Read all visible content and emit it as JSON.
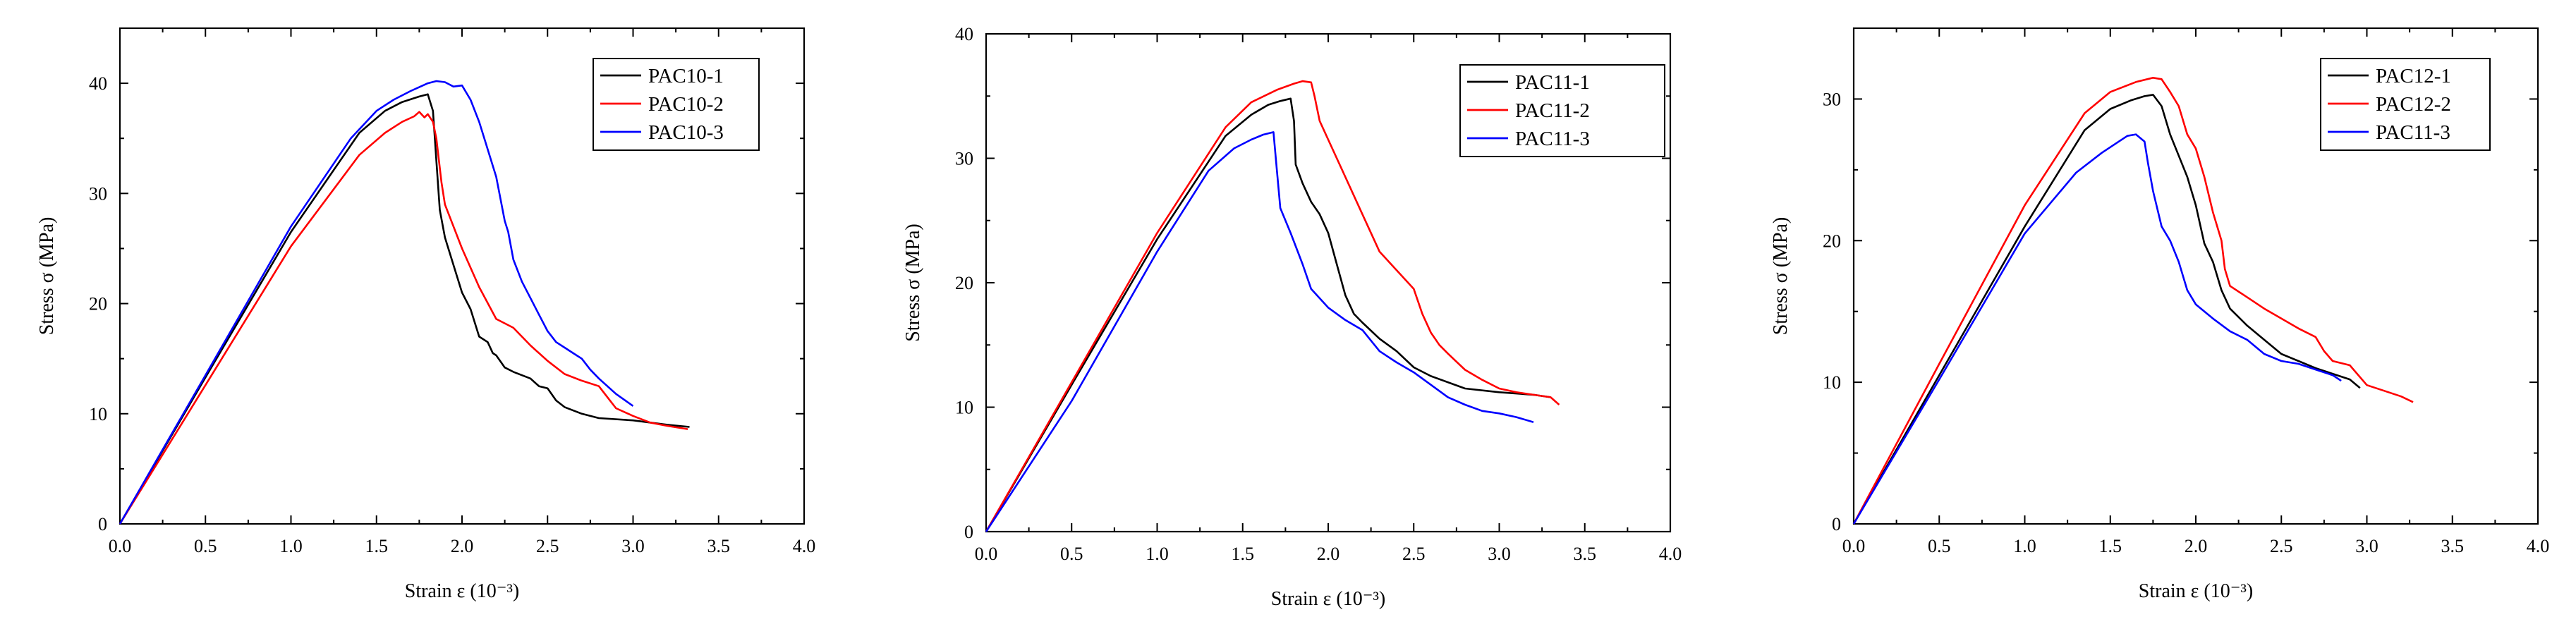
{
  "chart_data": [
    {
      "type": "line",
      "xlabel": "Strain ε (10⁻³)",
      "ylabel": "Stress σ (MPa)",
      "xlim": [
        0,
        4.0
      ],
      "ylim": [
        0,
        45
      ],
      "xticks": [
        "0.0",
        "0.5",
        "1.0",
        "1.5",
        "2.0",
        "2.5",
        "3.0",
        "3.5",
        "4.0"
      ],
      "yticks": [
        "0",
        "10",
        "20",
        "30",
        "40"
      ],
      "ytick_values": [
        0,
        10,
        20,
        30,
        40
      ],
      "legend_position": "top-right",
      "series": [
        {
          "name": "PAC10-1",
          "color": "#000000",
          "x": [
            0,
            0.5,
            1.0,
            1.4,
            1.55,
            1.65,
            1.75,
            1.8,
            1.83,
            1.85,
            1.87,
            1.9,
            1.95,
            2.0,
            2.05,
            2.1,
            2.15,
            2.18,
            2.2,
            2.25,
            2.3,
            2.4,
            2.45,
            2.5,
            2.55,
            2.6,
            2.7,
            2.8,
            3.0,
            3.2,
            3.33
          ],
          "y": [
            0,
            13.3,
            26.5,
            35.5,
            37.5,
            38.3,
            38.8,
            39.0,
            37.5,
            33,
            28.5,
            26,
            23.5,
            21,
            19.5,
            17,
            16.5,
            15.5,
            15.3,
            14.2,
            13.8,
            13.2,
            12.5,
            12.3,
            11.2,
            10.6,
            10,
            9.6,
            9.4,
            9.0,
            8.8
          ]
        },
        {
          "name": "PAC10-2",
          "color": "#ff0000",
          "x": [
            0,
            0.5,
            1.0,
            1.4,
            1.55,
            1.65,
            1.72,
            1.75,
            1.78,
            1.8,
            1.83,
            1.85,
            1.88,
            1.9,
            2.0,
            2.1,
            2.2,
            2.3,
            2.35,
            2.4,
            2.5,
            2.6,
            2.7,
            2.8,
            2.85,
            2.9,
            3.0,
            3.1,
            3.2,
            3.32
          ],
          "y": [
            0,
            12.6,
            25.2,
            33.5,
            35.5,
            36.5,
            37.0,
            37.4,
            36.9,
            37.2,
            36.5,
            35,
            31,
            29,
            25,
            21.5,
            18.6,
            17.8,
            17,
            16.2,
            14.8,
            13.6,
            13.0,
            12.5,
            11.5,
            10.5,
            9.8,
            9.2,
            8.9,
            8.6
          ]
        },
        {
          "name": "PAC10-3",
          "color": "#0000ff",
          "x": [
            0,
            0.5,
            1.0,
            1.35,
            1.5,
            1.6,
            1.7,
            1.8,
            1.85,
            1.9,
            1.95,
            2.0,
            2.05,
            2.1,
            2.15,
            2.2,
            2.25,
            2.27,
            2.3,
            2.35,
            2.4,
            2.45,
            2.5,
            2.55,
            2.6,
            2.65,
            2.7,
            2.75,
            2.8,
            2.85,
            2.9,
            3.0
          ],
          "y": [
            0,
            13.5,
            27,
            35,
            37.5,
            38.5,
            39.3,
            40.0,
            40.2,
            40.1,
            39.7,
            39.8,
            38.5,
            36.5,
            34,
            31.5,
            27.5,
            26.5,
            24,
            22,
            20.5,
            19,
            17.5,
            16.5,
            16,
            15.5,
            15,
            14,
            13.2,
            12.5,
            11.8,
            10.7
          ]
        }
      ],
      "axis_title_rotation": "vertical"
    },
    {
      "type": "line",
      "xlabel": "Strain ε (10⁻³)",
      "ylabel": "Stress σ (MPa)",
      "xlim": [
        0,
        4.0
      ],
      "ylim": [
        0,
        40
      ],
      "xticks": [
        "0.0",
        "0.5",
        "1.0",
        "1.5",
        "2.0",
        "2.5",
        "3.0",
        "3.5",
        "4.0"
      ],
      "yticks": [
        "0",
        "10",
        "20",
        "30",
        "40"
      ],
      "ytick_values": [
        0,
        10,
        20,
        30,
        40
      ],
      "legend_position": "top-right",
      "series": [
        {
          "name": "PAC11-1",
          "color": "#000000",
          "x": [
            0,
            0.5,
            1.0,
            1.4,
            1.55,
            1.65,
            1.72,
            1.78,
            1.8,
            1.81,
            1.85,
            1.9,
            1.95,
            2.0,
            2.05,
            2.1,
            2.15,
            2.2,
            2.3,
            2.4,
            2.5,
            2.6,
            2.8,
            3.0,
            3.2,
            3.3
          ],
          "y": [
            0,
            11.8,
            23.5,
            31.8,
            33.5,
            34.3,
            34.6,
            34.8,
            33,
            29.5,
            28,
            26.5,
            25.5,
            24,
            21.5,
            19,
            17.5,
            16.8,
            15.5,
            14.5,
            13.2,
            12.5,
            11.5,
            11.2,
            11.0,
            10.8
          ]
        },
        {
          "name": "PAC11-2",
          "color": "#ff0000",
          "x": [
            0,
            0.5,
            1.0,
            1.4,
            1.55,
            1.7,
            1.8,
            1.85,
            1.9,
            1.92,
            1.95,
            2.0,
            2.1,
            2.2,
            2.3,
            2.4,
            2.5,
            2.55,
            2.6,
            2.65,
            2.7,
            2.8,
            2.9,
            3.0,
            3.1,
            3.2,
            3.3,
            3.35
          ],
          "y": [
            0,
            12,
            24,
            32.5,
            34.5,
            35.5,
            36.0,
            36.2,
            36.1,
            35,
            33,
            31.5,
            28.5,
            25.5,
            22.5,
            21,
            19.5,
            17.5,
            16,
            15,
            14.3,
            13,
            12.2,
            11.5,
            11.2,
            11.0,
            10.8,
            10.2
          ]
        },
        {
          "name": "PAC11-3",
          "color": "#0000ff",
          "x": [
            0,
            0.5,
            1.0,
            1.3,
            1.45,
            1.55,
            1.62,
            1.68,
            1.7,
            1.72,
            1.78,
            1.85,
            1.9,
            2.0,
            2.1,
            2.2,
            2.3,
            2.4,
            2.5,
            2.6,
            2.7,
            2.8,
            2.9,
            3.0,
            3.1,
            3.2
          ],
          "y": [
            0,
            10.5,
            22.5,
            29,
            30.8,
            31.5,
            31.9,
            32.1,
            29,
            26,
            24,
            21.5,
            19.5,
            18,
            17,
            16.2,
            14.5,
            13.6,
            12.8,
            11.8,
            10.8,
            10.2,
            9.7,
            9.5,
            9.2,
            8.8
          ]
        }
      ],
      "axis_title_rotation": "vertical"
    },
    {
      "type": "line",
      "xlabel": "Strain ε (10⁻³)",
      "ylabel": "Stress σ (MPa)",
      "xlim": [
        0,
        4.0
      ],
      "ylim": [
        0,
        35
      ],
      "xticks": [
        "0.0",
        "0.5",
        "1.0",
        "1.5",
        "2.0",
        "2.5",
        "3.0",
        "3.5",
        "4.0"
      ],
      "yticks": [
        "0",
        "10",
        "20",
        "30"
      ],
      "ytick_values": [
        0,
        10,
        20,
        30
      ],
      "legend_position": "top-right",
      "series": [
        {
          "name": "PAC12-1",
          "color": "#000000",
          "x": [
            0,
            0.5,
            1.0,
            1.35,
            1.5,
            1.62,
            1.7,
            1.75,
            1.8,
            1.85,
            1.9,
            1.95,
            2.0,
            2.05,
            2.1,
            2.15,
            2.2,
            2.25,
            2.3,
            2.4,
            2.5,
            2.6,
            2.7,
            2.8,
            2.9,
            2.96
          ],
          "y": [
            0,
            10.5,
            21,
            27.8,
            29.3,
            29.9,
            30.2,
            30.3,
            29.5,
            27.5,
            26,
            24.5,
            22.5,
            19.8,
            18.5,
            16.5,
            15.2,
            14.6,
            14.0,
            13.0,
            12.0,
            11.5,
            11.0,
            10.6,
            10.2,
            9.6
          ]
        },
        {
          "name": "PAC12-2",
          "color": "#ff0000",
          "x": [
            0,
            0.5,
            1.0,
            1.35,
            1.5,
            1.65,
            1.75,
            1.8,
            1.85,
            1.9,
            1.95,
            2.0,
            2.05,
            2.1,
            2.15,
            2.17,
            2.2,
            2.3,
            2.4,
            2.5,
            2.6,
            2.7,
            2.75,
            2.8,
            2.9,
            3.0,
            3.1,
            3.2,
            3.27
          ],
          "y": [
            0,
            11.3,
            22.5,
            29.0,
            30.5,
            31.2,
            31.5,
            31.4,
            30.5,
            29.5,
            27.5,
            26.5,
            24.5,
            22,
            20,
            18,
            16.8,
            16,
            15.2,
            14.5,
            13.8,
            13.2,
            12.2,
            11.5,
            11.2,
            9.8,
            9.4,
            9.0,
            8.6
          ]
        },
        {
          "name": "PAC11-3",
          "color": "#0000ff",
          "x": [
            0,
            0.5,
            1.0,
            1.3,
            1.45,
            1.55,
            1.6,
            1.65,
            1.7,
            1.72,
            1.75,
            1.8,
            1.85,
            1.9,
            1.95,
            2.0,
            2.1,
            2.2,
            2.3,
            2.4,
            2.5,
            2.6,
            2.7,
            2.8,
            2.85
          ],
          "y": [
            0,
            10.2,
            20.5,
            24.8,
            26.2,
            27.0,
            27.4,
            27.5,
            27.0,
            25.5,
            23.5,
            21.0,
            20.0,
            18.5,
            16.5,
            15.5,
            14.5,
            13.6,
            13.0,
            12.0,
            11.5,
            11.3,
            10.9,
            10.5,
            10.1
          ]
        }
      ],
      "axis_title_rotation": "vertical"
    }
  ]
}
